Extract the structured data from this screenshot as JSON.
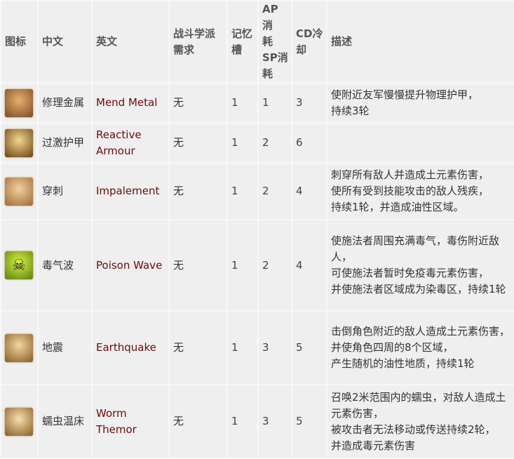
{
  "headers": [
    "图标",
    "中文",
    "英文",
    "战斗学派需求",
    "记忆槽",
    "AP消耗SP消耗",
    "CD冷却",
    "描述"
  ],
  "header_lines": [
    [
      "图标"
    ],
    [
      "中文"
    ],
    [
      "英文"
    ],
    [
      "战斗学派",
      "需求"
    ],
    [
      "记忆",
      "槽"
    ],
    [
      "AP消",
      "耗",
      "SP消",
      "耗"
    ],
    [
      "CD冷",
      "却"
    ],
    [
      "描述"
    ]
  ],
  "rows": [
    {
      "icon": "mend-metal-icon",
      "icon_colors": [
        "#e8b070",
        "#7a4a20"
      ],
      "icon_glyph": "",
      "zh": "修理金属",
      "en": "Mend Metal",
      "school": "无",
      "memory": "1",
      "ap": "1",
      "cd": "3",
      "desc": [
        "使附近友军慢慢提升物理护甲，",
        "持续3轮"
      ]
    },
    {
      "icon": "reactive-armour-icon",
      "icon_colors": [
        "#f5d890",
        "#6a4010"
      ],
      "icon_glyph": "",
      "zh": "过激护甲",
      "en": "Reactive Armour",
      "school": "无",
      "memory": "1",
      "ap": "2",
      "cd": "6",
      "desc": []
    },
    {
      "icon": "impalement-icon",
      "icon_colors": [
        "#f0d0a0",
        "#a06a30"
      ],
      "icon_glyph": "",
      "zh": "穿刺",
      "en": "Impalement",
      "school": "无",
      "memory": "1",
      "ap": "2",
      "cd": "4",
      "desc": [
        "刺穿所有敌人并造成土元素伤害，",
        "使所有受到技能攻击的敌人残疾，",
        "持续1轮，并造成油性区域。"
      ]
    },
    {
      "icon": "poison-wave-icon",
      "icon_colors": [
        "#d8f040",
        "#5a8010"
      ],
      "icon_glyph": "☠",
      "zh": "毒气波",
      "en": "Poison Wave",
      "school": "无",
      "memory": "1",
      "ap": "2",
      "cd": "4",
      "desc": [
        "使施法者周围充满毒气，毒伤附近敌人，",
        "可使施法者暂时免疫毒元素伤害，",
        "并使施法者区域成为染毒区，持续1轮"
      ]
    },
    {
      "icon": "earthquake-icon",
      "icon_colors": [
        "#f0d8a0",
        "#8a5a20"
      ],
      "icon_glyph": "",
      "zh": "地震",
      "en": "Earthquake",
      "school": "无",
      "memory": "1",
      "ap": "3",
      "cd": "5",
      "desc": [
        "击倒角色附近的敌人造成土元素伤害，",
        "并使角色四周的8个区域，",
        "产生随机的油性地质，持续1轮"
      ]
    },
    {
      "icon": "worm-tremor-icon",
      "icon_colors": [
        "#f5e0b0",
        "#8a5a20"
      ],
      "icon_glyph": "",
      "zh": "蠕虫温床",
      "en": "Worm Themor",
      "school": "无",
      "memory": "1",
      "ap": "3",
      "cd": "5",
      "desc": [
        "召唤2米范围内的蠕虫，对敌人造成土元素伤害，",
        "被攻击者无法移动或传送持续2轮，",
        "并造成毒元素伤害"
      ]
    }
  ]
}
